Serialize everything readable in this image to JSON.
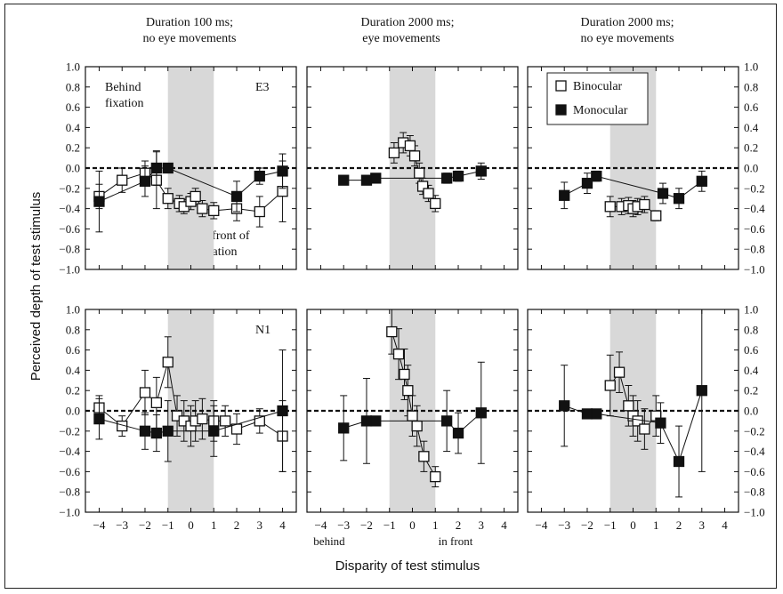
{
  "figure": {
    "ylabel": "Perceived depth of test stimulus",
    "xlabel": "Disparity of test stimulus",
    "behind_label": "behind",
    "infront_label": "in front",
    "col_titles": [
      {
        "line1": "Duration 100 ms;",
        "line2": "no eye movements"
      },
      {
        "line1": "Duration 2000 ms;",
        "line2": "eye movements"
      },
      {
        "line1": "Duration 2000 ms;",
        "line2": "no eye movements"
      }
    ],
    "annotations": {
      "behind_fixation": [
        "Behind",
        "fixation"
      ],
      "infront_fixation": [
        "In front of",
        "fixation"
      ],
      "subject_top": "E3",
      "subject_bottom": "N1"
    },
    "legend": [
      {
        "label": "Binocular",
        "marker": "open-square"
      },
      {
        "label": "Monocular",
        "marker": "filled-square"
      }
    ],
    "x_ticks": [
      "−4",
      "−3",
      "−2",
      "−1",
      "0",
      "1",
      "2",
      "3",
      "4"
    ],
    "y_ticks": [
      "1.0",
      "0.8",
      "0.6",
      "0.4",
      "0.2",
      "0.0",
      "−0.2",
      "−0.4",
      "−0.6",
      "−0.8",
      "−1.0"
    ],
    "colors": {
      "shade": "#d8d8d8",
      "ink": "#111111",
      "frame": "#222222"
    }
  },
  "chart_data": [
    {
      "type": "scatter",
      "row": 0,
      "col": 0,
      "xlim": [
        -4.6,
        4.6
      ],
      "ylim": [
        -1.0,
        1.0
      ],
      "shaded_x": [
        -1,
        1
      ],
      "reference_y": 0,
      "series": [
        {
          "name": "Binocular",
          "marker": "open",
          "points": [
            {
              "x": -4,
              "y": -0.28,
              "err": 0.12
            },
            {
              "x": -3,
              "y": -0.12,
              "err": 0.12
            },
            {
              "x": -2,
              "y": -0.05,
              "err": 0.12
            },
            {
              "x": -1.5,
              "y": -0.12,
              "err": 0.28
            },
            {
              "x": -1,
              "y": -0.3,
              "err": 0.1
            },
            {
              "x": -0.5,
              "y": -0.35,
              "err": 0.08
            },
            {
              "x": -0.3,
              "y": -0.38,
              "err": 0.07
            },
            {
              "x": 0,
              "y": -0.33,
              "err": 0.08
            },
            {
              "x": 0.2,
              "y": -0.28,
              "err": 0.08
            },
            {
              "x": 0.5,
              "y": -0.4,
              "err": 0.08
            },
            {
              "x": 1,
              "y": -0.42,
              "err": 0.08
            },
            {
              "x": 2,
              "y": -0.4,
              "err": 0.12
            },
            {
              "x": 3,
              "y": -0.43,
              "err": 0.15
            },
            {
              "x": 4,
              "y": -0.23,
              "err": 0.3
            }
          ]
        },
        {
          "name": "Monocular",
          "marker": "filled",
          "points": [
            {
              "x": -4,
              "y": -0.33,
              "err": 0.3
            },
            {
              "x": -2,
              "y": -0.13,
              "err": 0.15
            },
            {
              "x": -1.5,
              "y": 0.0,
              "err": 0.17
            },
            {
              "x": -1,
              "y": 0.0,
              "err": 0.0
            },
            {
              "x": 2,
              "y": -0.28,
              "err": 0.15
            },
            {
              "x": 3,
              "y": -0.08,
              "err": 0.08
            },
            {
              "x": 4,
              "y": -0.03,
              "err": 0.17
            }
          ]
        }
      ]
    },
    {
      "type": "scatter",
      "row": 0,
      "col": 1,
      "xlim": [
        -4.6,
        4.6
      ],
      "ylim": [
        -1.0,
        1.0
      ],
      "shaded_x": [
        -1,
        1
      ],
      "reference_y": 0,
      "series": [
        {
          "name": "Binocular",
          "marker": "open",
          "points": [
            {
              "x": -0.8,
              "y": 0.15,
              "err": 0.1
            },
            {
              "x": -0.4,
              "y": 0.25,
              "err": 0.1
            },
            {
              "x": -0.1,
              "y": 0.22,
              "err": 0.1
            },
            {
              "x": 0.1,
              "y": 0.12,
              "err": 0.1
            },
            {
              "x": 0.3,
              "y": -0.05,
              "err": 0.1
            },
            {
              "x": 0.45,
              "y": -0.18,
              "err": 0.08
            },
            {
              "x": 0.7,
              "y": -0.25,
              "err": 0.08
            },
            {
              "x": 1.0,
              "y": -0.35,
              "err": 0.08
            }
          ]
        },
        {
          "name": "Monocular",
          "marker": "filled",
          "points": [
            {
              "x": -3,
              "y": -0.12,
              "err": 0.0
            },
            {
              "x": -2,
              "y": -0.12,
              "err": 0.0
            },
            {
              "x": -1.6,
              "y": -0.1,
              "err": 0.0
            },
            {
              "x": 1.5,
              "y": -0.1,
              "err": 0.05
            },
            {
              "x": 2,
              "y": -0.08,
              "err": 0.05
            },
            {
              "x": 3,
              "y": -0.03,
              "err": 0.08
            }
          ]
        }
      ]
    },
    {
      "type": "scatter",
      "row": 0,
      "col": 2,
      "xlim": [
        -4.6,
        4.6
      ],
      "ylim": [
        -1.0,
        1.0
      ],
      "shaded_x": [
        -1,
        1
      ],
      "reference_y": 0,
      "series": [
        {
          "name": "Binocular",
          "marker": "open",
          "points": [
            {
              "x": -1,
              "y": -0.38,
              "err": 0.1
            },
            {
              "x": -0.5,
              "y": -0.38,
              "err": 0.08
            },
            {
              "x": -0.2,
              "y": -0.37,
              "err": 0.08
            },
            {
              "x": 0,
              "y": -0.4,
              "err": 0.08
            },
            {
              "x": 0.2,
              "y": -0.38,
              "err": 0.08
            },
            {
              "x": 0.5,
              "y": -0.36,
              "err": 0.08
            },
            {
              "x": 1,
              "y": -0.47,
              "err": 0.05
            }
          ]
        },
        {
          "name": "Monocular",
          "marker": "filled",
          "points": [
            {
              "x": -3,
              "y": -0.27,
              "err": 0.13
            },
            {
              "x": -2,
              "y": -0.15,
              "err": 0.1
            },
            {
              "x": -1.6,
              "y": -0.08,
              "err": 0.05
            },
            {
              "x": 1.3,
              "y": -0.25,
              "err": 0.1
            },
            {
              "x": 2,
              "y": -0.3,
              "err": 0.1
            },
            {
              "x": 3,
              "y": -0.13,
              "err": 0.1
            }
          ]
        }
      ]
    },
    {
      "type": "scatter",
      "row": 1,
      "col": 0,
      "xlim": [
        -4.6,
        4.6
      ],
      "ylim": [
        -1.0,
        1.0
      ],
      "shaded_x": [
        -1,
        1
      ],
      "reference_y": 0,
      "series": [
        {
          "name": "Binocular",
          "marker": "open",
          "points": [
            {
              "x": -4,
              "y": 0.03,
              "err": 0.12
            },
            {
              "x": -3,
              "y": -0.15,
              "err": 0.1
            },
            {
              "x": -2,
              "y": 0.18,
              "err": 0.22
            },
            {
              "x": -1.5,
              "y": 0.08,
              "err": 0.25
            },
            {
              "x": -1,
              "y": 0.48,
              "err": 0.25
            },
            {
              "x": -0.6,
              "y": -0.05,
              "err": 0.2
            },
            {
              "x": -0.3,
              "y": -0.1,
              "err": 0.2
            },
            {
              "x": 0,
              "y": -0.15,
              "err": 0.2
            },
            {
              "x": 0.2,
              "y": -0.1,
              "err": 0.2
            },
            {
              "x": 0.5,
              "y": -0.08,
              "err": 0.2
            },
            {
              "x": 1,
              "y": -0.1,
              "err": 0.2
            },
            {
              "x": 1.5,
              "y": -0.1,
              "err": 0.15
            },
            {
              "x": 2,
              "y": -0.18,
              "err": 0.15
            },
            {
              "x": 3,
              "y": -0.1,
              "err": 0.12
            },
            {
              "x": 4,
              "y": -0.25,
              "err": 0.35
            }
          ]
        },
        {
          "name": "Monocular",
          "marker": "filled",
          "points": [
            {
              "x": -4,
              "y": -0.08,
              "err": 0.2
            },
            {
              "x": -2,
              "y": -0.2,
              "err": 0.18
            },
            {
              "x": -1.5,
              "y": -0.22,
              "err": 0.18
            },
            {
              "x": -1,
              "y": -0.2,
              "err": 0.3
            },
            {
              "x": 1,
              "y": -0.2,
              "err": 0.25
            },
            {
              "x": 4,
              "y": 0.0,
              "err": 0.6
            }
          ]
        }
      ]
    },
    {
      "type": "scatter",
      "row": 1,
      "col": 1,
      "xlim": [
        -4.6,
        4.6
      ],
      "ylim": [
        -1.0,
        1.0
      ],
      "shaded_x": [
        -1,
        1
      ],
      "reference_y": 0,
      "series": [
        {
          "name": "Binocular",
          "marker": "open",
          "points": [
            {
              "x": -0.9,
              "y": 0.78,
              "err": 0.22
            },
            {
              "x": -0.6,
              "y": 0.56,
              "err": 0.25
            },
            {
              "x": -0.35,
              "y": 0.36,
              "err": 0.25
            },
            {
              "x": -0.2,
              "y": 0.2,
              "err": 0.25
            },
            {
              "x": 0,
              "y": -0.05,
              "err": 0.2
            },
            {
              "x": 0.2,
              "y": -0.15,
              "err": 0.2
            },
            {
              "x": 0.5,
              "y": -0.45,
              "err": 0.15
            },
            {
              "x": 1.0,
              "y": -0.65,
              "err": 0.1
            }
          ]
        },
        {
          "name": "Monocular",
          "marker": "filled",
          "points": [
            {
              "x": -3,
              "y": -0.17,
              "err": 0.32
            },
            {
              "x": -2,
              "y": -0.1,
              "err": 0.42
            },
            {
              "x": -1.6,
              "y": -0.1,
              "err": 0.0
            },
            {
              "x": 1.5,
              "y": -0.1,
              "err": 0.3
            },
            {
              "x": 2,
              "y": -0.22,
              "err": 0.2
            },
            {
              "x": 3,
              "y": -0.02,
              "err": 0.5
            }
          ]
        }
      ]
    },
    {
      "type": "scatter",
      "row": 1,
      "col": 2,
      "xlim": [
        -4.6,
        4.6
      ],
      "ylim": [
        -1.0,
        1.0
      ],
      "shaded_x": [
        -1,
        1
      ],
      "reference_y": 0,
      "series": [
        {
          "name": "Binocular",
          "marker": "open",
          "points": [
            {
              "x": -1,
              "y": 0.25,
              "err": 0.3
            },
            {
              "x": -0.6,
              "y": 0.38,
              "err": 0.2
            },
            {
              "x": -0.2,
              "y": 0.05,
              "err": 0.2
            },
            {
              "x": 0,
              "y": -0.05,
              "err": 0.2
            },
            {
              "x": 0.2,
              "y": -0.1,
              "err": 0.2
            },
            {
              "x": 0.5,
              "y": -0.18,
              "err": 0.2
            },
            {
              "x": 1.0,
              "y": -0.05,
              "err": 0.2
            }
          ]
        },
        {
          "name": "Monocular",
          "marker": "filled",
          "points": [
            {
              "x": -3,
              "y": 0.05,
              "err": 0.4
            },
            {
              "x": -2,
              "y": -0.03,
              "err": 0.0
            },
            {
              "x": -1.6,
              "y": -0.03,
              "err": 0.0
            },
            {
              "x": 1.2,
              "y": -0.12,
              "err": 0.2
            },
            {
              "x": 2,
              "y": -0.5,
              "err": 0.35
            },
            {
              "x": 3,
              "y": 0.2,
              "err": 0.8
            }
          ]
        }
      ]
    }
  ]
}
